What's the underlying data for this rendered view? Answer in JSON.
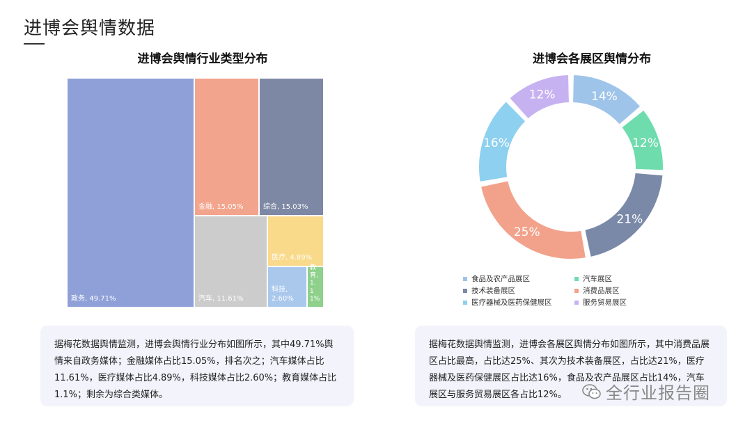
{
  "page": {
    "title": "进博会舆情数据"
  },
  "treemap": {
    "title": "进博会舆情行业类型分布",
    "cells": [
      {
        "label": "政务, 49.71%",
        "color": "#8fa0d8"
      },
      {
        "label": "金融, 15.05%",
        "color": "#f3a48c"
      },
      {
        "label": "综合, 15.03%",
        "color": "#7d88a4"
      },
      {
        "label": "汽车, 11.61%",
        "color": "#cccccc"
      },
      {
        "label": "医疗, 4.89%",
        "color": "#f9d98a"
      },
      {
        "label": "科技, 2.60%",
        "color": "#a9c8ec"
      },
      {
        "label": "教育, 1.1 1%",
        "color": "#8ed08c"
      }
    ]
  },
  "donut": {
    "title": "进博会各展区舆情分布"
  },
  "chart_data": [
    {
      "type": "treemap",
      "title": "进博会舆情行业类型分布",
      "categories": [
        "政务",
        "金融",
        "综合",
        "汽车",
        "医疗",
        "科技",
        "教育"
      ],
      "values": [
        49.71,
        15.05,
        15.03,
        11.61,
        4.89,
        2.6,
        1.1
      ]
    },
    {
      "type": "pie",
      "title": "进博会各展区舆情分布",
      "categories": [
        "食品及农产品展区",
        "汽车展区",
        "技术装备展区",
        "消费品展区",
        "医疗器械及医药保健展区",
        "服务贸易展区"
      ],
      "values": [
        14,
        12,
        21,
        25,
        16,
        12
      ],
      "labels": [
        "14%",
        "12%",
        "21%",
        "25%",
        "16%",
        "12%"
      ],
      "colors": [
        "#9fc4e9",
        "#6fdcad",
        "#7a89a8",
        "#f2a28b",
        "#8dd0ef",
        "#c7b2f1"
      ],
      "legend": "bottom"
    }
  ],
  "descriptions": {
    "left": "据梅花数据舆情监测，进博会舆情行业分布如图所示，其中49.71%舆情来自政务媒体；金融媒体占比15.05%，排名次之；汽车媒体占比11.61%，医疗媒体占比4.89%，科技媒体占比2.60%；教育媒体占比1.1%；剩余为综合类媒体。",
    "right": "据梅花数据舆情监测，进博会各展区舆情分布如图所示，其中消费品展区占比最高，占比达25%、其次为技术装备展区，占比达21%，医疗器械及医药保健展区占比达16%，食品及农产品展区占比14%，汽车展区与服务贸易展区各占比12%。"
  },
  "watermark": {
    "text": "全行业报告圈",
    "icon": "wechat-icon"
  }
}
